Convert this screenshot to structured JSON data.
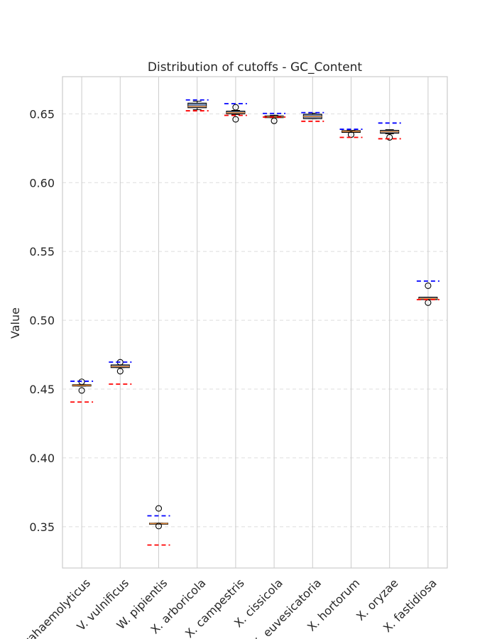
{
  "chart_data": {
    "type": "box",
    "title": "Distribution of cutoffs - GC_Content",
    "xlabel": "",
    "ylabel": "Value",
    "ylim": [
      0.32,
      0.677
    ],
    "yticks": [
      0.35,
      0.4,
      0.45,
      0.5,
      0.55,
      0.6,
      0.65
    ],
    "ytick_labels": [
      "0.35",
      "0.40",
      "0.45",
      "0.50",
      "0.55",
      "0.60",
      "0.65"
    ],
    "grid": "horizontal dashed, vertical solid",
    "colors": {
      "box": "#7389ae",
      "median": "#e08a3c",
      "blue_line": "#0000ff",
      "red_line": "#ff0000",
      "grid": "#dddddd",
      "vgrid": "#cccccc"
    },
    "categories": [
      "V. parahaemolyticus",
      "V. vulnificus",
      "W. pipientis",
      "X. arboricola",
      "X. campestris",
      "X. cissicola",
      "X. euvesicatoria",
      "X. hortorum",
      "X. oryzae",
      "X. fastidiosa"
    ],
    "boxes": [
      {
        "q1": 0.4522,
        "median": 0.4527,
        "q3": 0.4532,
        "whisker_low": 0.4522,
        "whisker_high": 0.4532,
        "outliers": [
          0.4553,
          0.449
        ],
        "blue_line": 0.4557,
        "red_line": 0.4406
      },
      {
        "q1": 0.4656,
        "median": 0.4664,
        "q3": 0.4676,
        "whisker_low": 0.4656,
        "whisker_high": 0.4676,
        "outliers": [
          0.4695,
          0.463
        ],
        "blue_line": 0.4696,
        "red_line": 0.4536
      },
      {
        "q1": 0.352,
        "median": 0.3523,
        "q3": 0.3526,
        "whisker_low": 0.352,
        "whisker_high": 0.3526,
        "outliers": [
          0.3633,
          0.3505
        ],
        "blue_line": 0.3579,
        "red_line": 0.3367
      },
      {
        "q1": 0.6544,
        "median": 0.6554,
        "q3": 0.6578,
        "whisker_low": 0.653,
        "whisker_high": 0.6592,
        "outliers": [],
        "blue_line": 0.6601,
        "red_line": 0.6522
      },
      {
        "q1": 0.65,
        "median": 0.6508,
        "q3": 0.652,
        "whisker_low": 0.6495,
        "whisker_high": 0.6525,
        "outliers": [
          0.6548,
          0.646
        ],
        "blue_line": 0.6574,
        "red_line": 0.6489
      },
      {
        "q1": 0.6472,
        "median": 0.6478,
        "q3": 0.6485,
        "whisker_low": 0.6472,
        "whisker_high": 0.649,
        "outliers": [
          0.6449
        ],
        "blue_line": 0.6503,
        "red_line": 0.6477
      },
      {
        "q1": 0.6465,
        "median": 0.648,
        "q3": 0.6497,
        "whisker_low": 0.6465,
        "whisker_high": 0.6505,
        "outliers": [],
        "blue_line": 0.6509,
        "red_line": 0.6446
      },
      {
        "q1": 0.6365,
        "median": 0.6372,
        "q3": 0.6378,
        "whisker_low": 0.6365,
        "whisker_high": 0.638,
        "outliers": [
          0.6349
        ],
        "blue_line": 0.6388,
        "red_line": 0.6329
      },
      {
        "q1": 0.6359,
        "median": 0.637,
        "q3": 0.638,
        "whisker_low": 0.6355,
        "whisker_high": 0.6385,
        "outliers": [
          0.6329
        ],
        "blue_line": 0.6433,
        "red_line": 0.6319
      },
      {
        "q1": 0.515,
        "median": 0.5158,
        "q3": 0.5168,
        "whisker_low": 0.515,
        "whisker_high": 0.5168,
        "outliers": [
          0.5251,
          0.5128
        ],
        "blue_line": 0.5285,
        "red_line": 0.515
      }
    ]
  }
}
